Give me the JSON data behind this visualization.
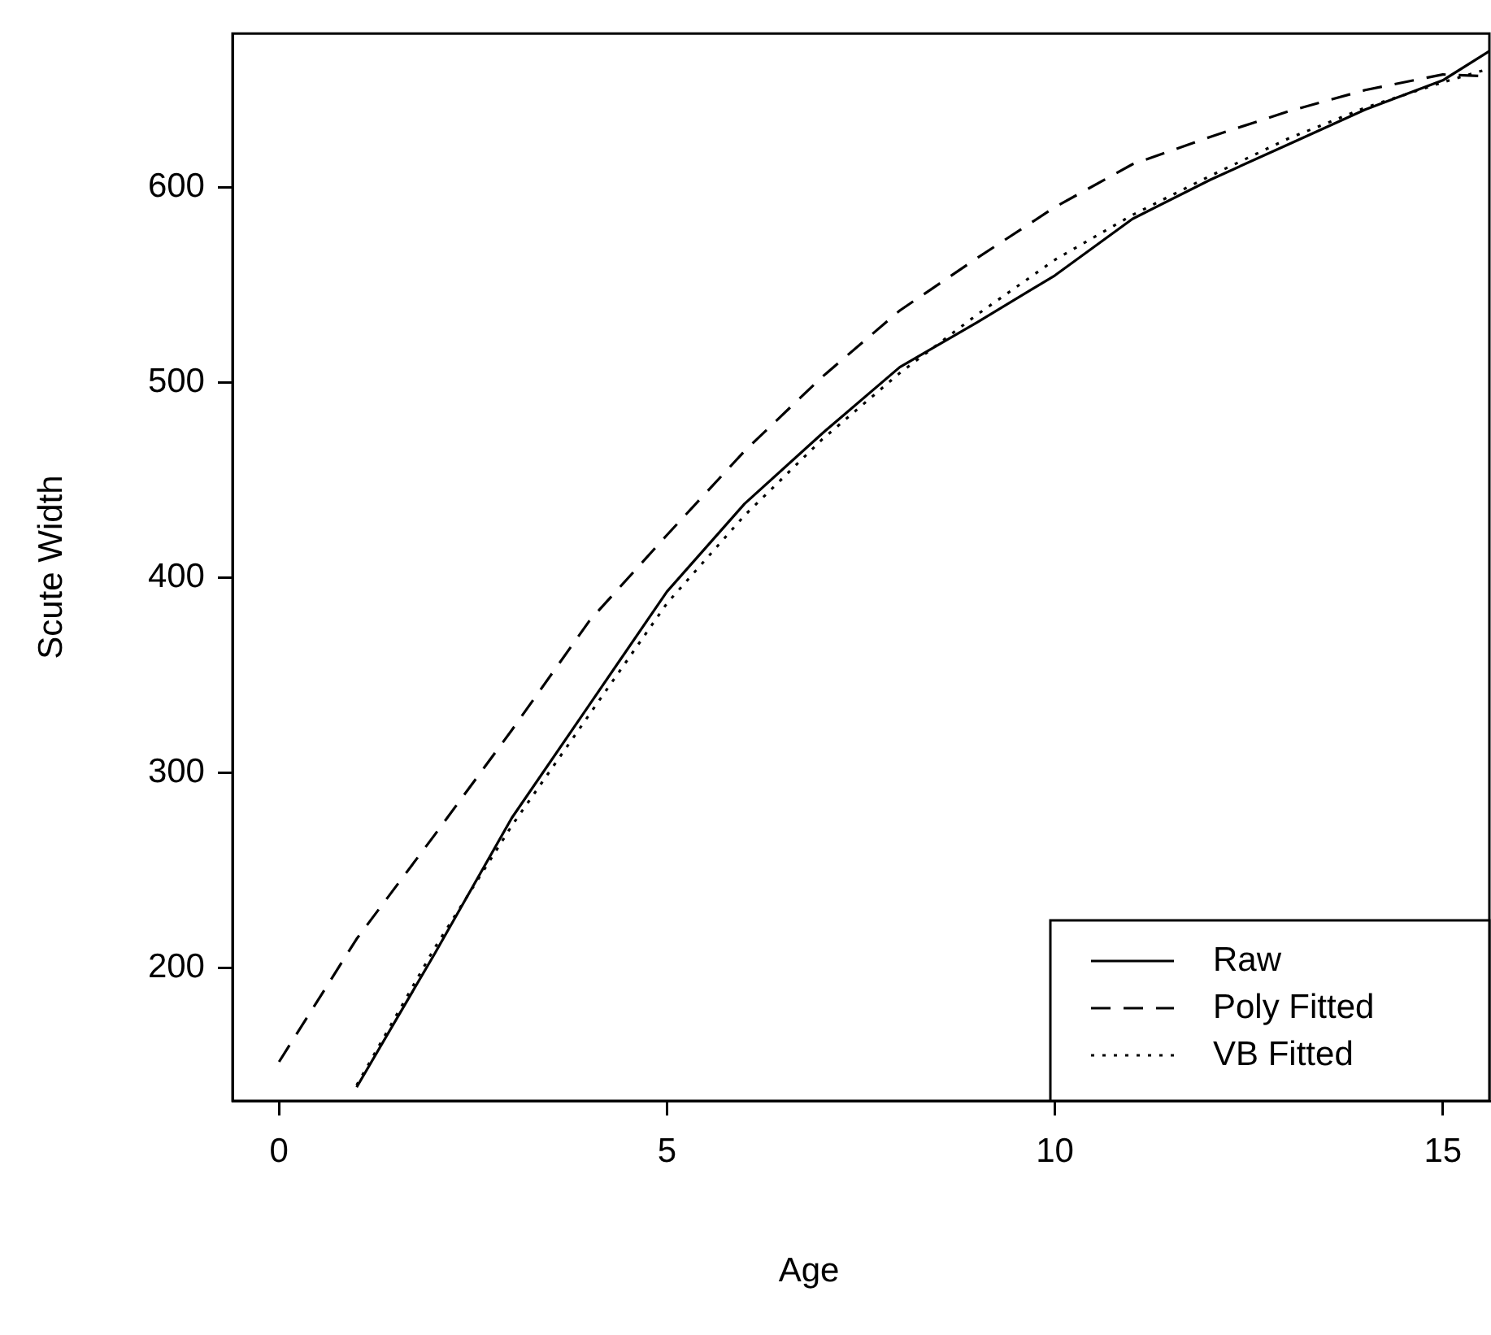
{
  "chart_data": {
    "type": "line",
    "xlabel": "Age",
    "ylabel": "Scute Width",
    "xlim": [
      -0.6,
      15.6
    ],
    "ylim": [
      132,
      679
    ],
    "xticks": [
      0,
      5,
      10,
      15
    ],
    "yticks": [
      200,
      300,
      400,
      500,
      600
    ],
    "grid": false,
    "legend": "bottom right",
    "marker": "none",
    "series": [
      {
        "name": "Raw",
        "color": "#000000",
        "line_style": "solid",
        "x": [
          1,
          2,
          3,
          4,
          5,
          6,
          7,
          8,
          9,
          10,
          11,
          12,
          13,
          14,
          15,
          15.6
        ],
        "values": [
          139,
          207,
          277,
          335,
          393,
          438,
          474,
          508,
          531,
          555,
          584,
          604,
          622,
          640,
          655,
          670
        ]
      },
      {
        "name": "Poly Fitted",
        "color": "#000000",
        "line_style": "dashed",
        "x": [
          0,
          1,
          2,
          3,
          4,
          5,
          6,
          7,
          8,
          9,
          10,
          11,
          12,
          13,
          14,
          15,
          15.6
        ],
        "values": [
          152,
          215,
          268,
          322,
          378,
          422,
          465,
          503,
          537,
          564,
          590,
          612,
          626,
          639,
          650,
          658,
          657
        ]
      },
      {
        "name": "VB Fitted",
        "color": "#000000",
        "line_style": "dotted",
        "x": [
          1,
          2,
          3,
          4,
          5,
          6,
          7,
          8,
          9,
          10,
          11,
          12,
          13,
          14,
          15,
          15.6
        ],
        "values": [
          140,
          210,
          273,
          330,
          387,
          432,
          471,
          505,
          535,
          563,
          586,
          606,
          625,
          641,
          654,
          661
        ]
      }
    ]
  }
}
